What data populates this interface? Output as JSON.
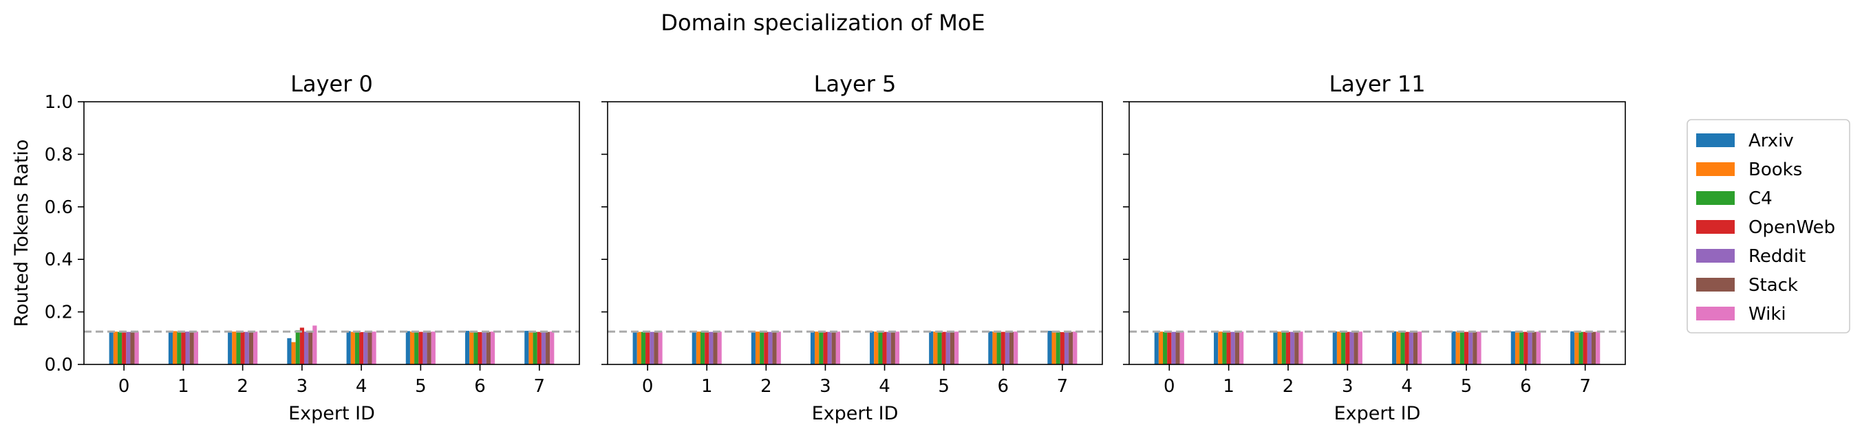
{
  "suptitle": "Domain specialization of MoE",
  "legend": {
    "placement": "right, outside",
    "entries": [
      {
        "label": "Arxiv",
        "color": "#1f77b4"
      },
      {
        "label": "Books",
        "color": "#ff7f0e"
      },
      {
        "label": "C4",
        "color": "#2ca02c"
      },
      {
        "label": "OpenWeb",
        "color": "#d62728"
      },
      {
        "label": "Reddit",
        "color": "#9467bd"
      },
      {
        "label": "Stack",
        "color": "#8c564b"
      },
      {
        "label": "Wiki",
        "color": "#e377c2"
      }
    ]
  },
  "chart_data": [
    {
      "type": "bar",
      "title": "Layer 0",
      "xlabel": "Expert ID",
      "ylabel": "Routed Tokens Ratio",
      "ylim": [
        0,
        1.0
      ],
      "yticks": [
        "0.0",
        "0.2",
        "0.4",
        "0.6",
        "0.8",
        "1.0"
      ],
      "categories": [
        "0",
        "1",
        "2",
        "3",
        "4",
        "5",
        "6",
        "7"
      ],
      "reference_line": {
        "y": 0.125,
        "style": "dashed",
        "color": "#aaaaaa"
      },
      "grid": false,
      "series": [
        {
          "name": "Arxiv",
          "values": [
            0.128,
            0.128,
            0.127,
            0.1,
            0.127,
            0.127,
            0.128,
            0.128
          ]
        },
        {
          "name": "Books",
          "values": [
            0.125,
            0.127,
            0.125,
            0.085,
            0.124,
            0.125,
            0.125,
            0.126
          ]
        },
        {
          "name": "C4",
          "values": [
            0.124,
            0.125,
            0.124,
            0.13,
            0.124,
            0.124,
            0.124,
            0.124
          ]
        },
        {
          "name": "OpenWeb",
          "values": [
            0.123,
            0.124,
            0.124,
            0.14,
            0.123,
            0.124,
            0.123,
            0.124
          ]
        },
        {
          "name": "Reddit",
          "values": [
            0.124,
            0.125,
            0.124,
            0.125,
            0.124,
            0.124,
            0.124,
            0.124
          ]
        },
        {
          "name": "Stack",
          "values": [
            0.124,
            0.124,
            0.124,
            0.128,
            0.124,
            0.124,
            0.124,
            0.124
          ]
        },
        {
          "name": "Wiki",
          "values": [
            0.125,
            0.125,
            0.125,
            0.148,
            0.125,
            0.125,
            0.125,
            0.125
          ]
        }
      ]
    },
    {
      "type": "bar",
      "title": "Layer 5",
      "xlabel": "Expert ID",
      "ylabel": "",
      "ylim": [
        0,
        1.0
      ],
      "categories": [
        "0",
        "1",
        "2",
        "3",
        "4",
        "5",
        "6",
        "7"
      ],
      "reference_line": {
        "y": 0.125,
        "style": "dashed",
        "color": "#aaaaaa"
      },
      "grid": false,
      "series": [
        {
          "name": "Arxiv",
          "values": [
            0.126,
            0.126,
            0.126,
            0.126,
            0.126,
            0.126,
            0.126,
            0.128
          ]
        },
        {
          "name": "Books",
          "values": [
            0.124,
            0.125,
            0.125,
            0.125,
            0.125,
            0.125,
            0.125,
            0.127
          ]
        },
        {
          "name": "C4",
          "values": [
            0.124,
            0.125,
            0.124,
            0.124,
            0.124,
            0.124,
            0.124,
            0.125
          ]
        },
        {
          "name": "OpenWeb",
          "values": [
            0.123,
            0.124,
            0.124,
            0.124,
            0.124,
            0.124,
            0.124,
            0.123
          ]
        },
        {
          "name": "Reddit",
          "values": [
            0.124,
            0.124,
            0.124,
            0.124,
            0.124,
            0.124,
            0.124,
            0.124
          ]
        },
        {
          "name": "Stack",
          "values": [
            0.124,
            0.124,
            0.124,
            0.124,
            0.124,
            0.124,
            0.124,
            0.124
          ]
        },
        {
          "name": "Wiki",
          "values": [
            0.125,
            0.125,
            0.125,
            0.125,
            0.125,
            0.125,
            0.125,
            0.125
          ]
        }
      ]
    },
    {
      "type": "bar",
      "title": "Layer 11",
      "xlabel": "Expert ID",
      "ylabel": "",
      "ylim": [
        0,
        1.0
      ],
      "categories": [
        "0",
        "1",
        "2",
        "3",
        "4",
        "5",
        "6",
        "7"
      ],
      "reference_line": {
        "y": 0.125,
        "style": "dashed",
        "color": "#aaaaaa"
      },
      "grid": false,
      "series": [
        {
          "name": "Arxiv",
          "values": [
            0.126,
            0.126,
            0.126,
            0.126,
            0.126,
            0.126,
            0.126,
            0.126
          ]
        },
        {
          "name": "Books",
          "values": [
            0.125,
            0.125,
            0.125,
            0.125,
            0.125,
            0.125,
            0.125,
            0.125
          ]
        },
        {
          "name": "C4",
          "values": [
            0.124,
            0.124,
            0.124,
            0.124,
            0.124,
            0.124,
            0.124,
            0.124
          ]
        },
        {
          "name": "OpenWeb",
          "values": [
            0.124,
            0.124,
            0.124,
            0.124,
            0.124,
            0.124,
            0.124,
            0.124
          ]
        },
        {
          "name": "Reddit",
          "values": [
            0.124,
            0.124,
            0.124,
            0.124,
            0.124,
            0.124,
            0.124,
            0.124
          ]
        },
        {
          "name": "Stack",
          "values": [
            0.124,
            0.124,
            0.124,
            0.124,
            0.124,
            0.124,
            0.124,
            0.124
          ]
        },
        {
          "name": "Wiki",
          "values": [
            0.125,
            0.125,
            0.125,
            0.125,
            0.125,
            0.125,
            0.125,
            0.125
          ]
        }
      ]
    }
  ]
}
